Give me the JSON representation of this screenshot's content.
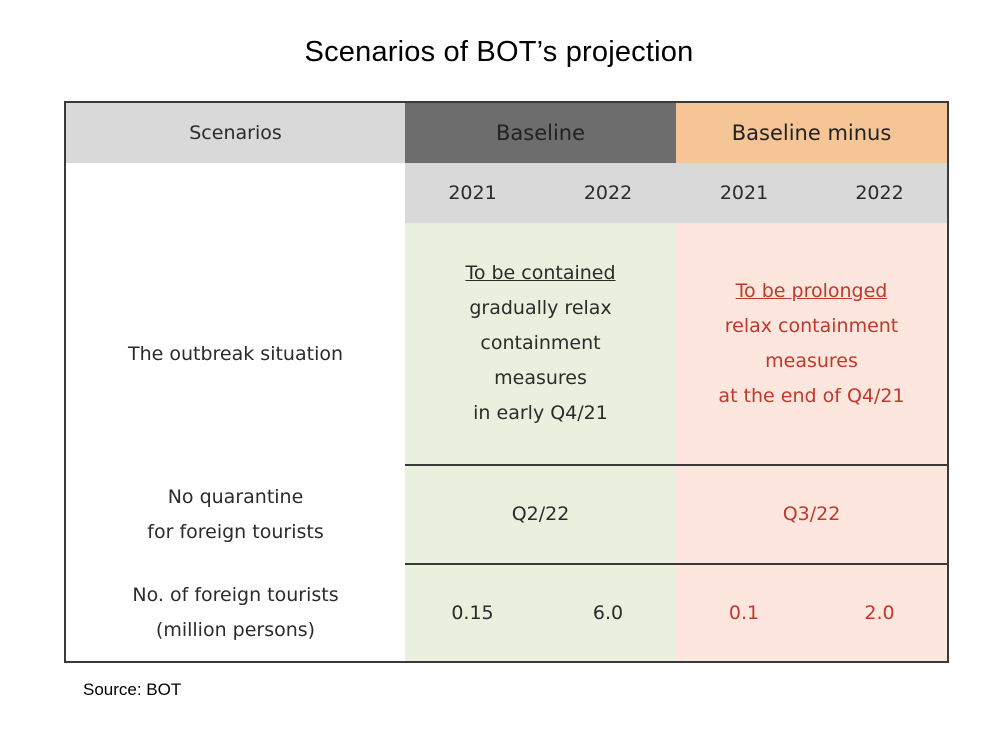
{
  "title": "Scenarios of BOT’s projection",
  "table": {
    "header": {
      "label": "Scenarios",
      "baseline": "Baseline",
      "baseline_minus": "Baseline minus"
    },
    "years": {
      "baseline": [
        "2021",
        "2022"
      ],
      "baseline_minus": [
        "2021",
        "2022"
      ]
    },
    "rows": {
      "outbreak": {
        "label": "The outbreak situation",
        "baseline": {
          "heading": "To be contained",
          "lines": [
            "gradually relax",
            "containment",
            "measures",
            "in early Q4/21"
          ]
        },
        "baseline_minus": {
          "heading": "To be prolonged",
          "lines": [
            "relax containment",
            "measures",
            "at the end of Q4/21"
          ]
        }
      },
      "quarantine": {
        "label_lines": [
          "No quarantine",
          "for foreign tourists"
        ],
        "baseline": "Q2/22",
        "baseline_minus": "Q3/22"
      },
      "tourists": {
        "label_lines": [
          "No. of foreign tourists",
          "(million persons)"
        ],
        "baseline": [
          "0.15",
          "6.0"
        ],
        "baseline_minus": [
          "0.1",
          "2.0"
        ]
      }
    }
  },
  "source": "Source: BOT"
}
